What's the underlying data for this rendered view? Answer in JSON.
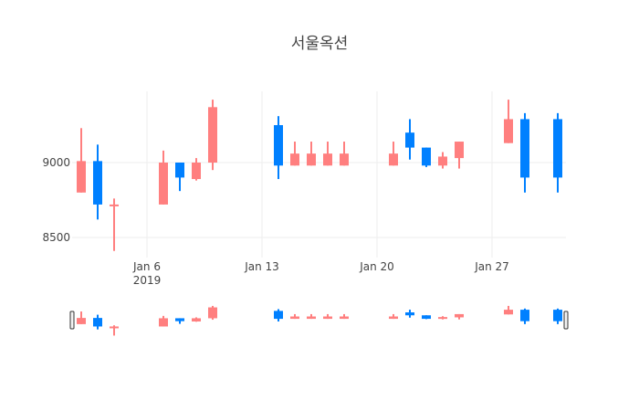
{
  "title": "서울옥션",
  "colors": {
    "increasing": "#FF7F7F",
    "decreasing": "#0080FF",
    "grid": "#eeeeee",
    "axis_text": "#444444"
  },
  "chart_data": {
    "type": "candlestick",
    "title": "서울옥션",
    "xlabel": "",
    "ylabel": "",
    "x_tick_labels": [
      "Jan 6\n2019",
      "Jan 13",
      "Jan 20",
      "Jan 27"
    ],
    "y_tick_labels": [
      "8500",
      "9000"
    ],
    "ylim": [
      8330,
      9480
    ],
    "grid": true,
    "legend": false,
    "rangeslider": true,
    "series": [
      {
        "name": "서울옥션",
        "dates": [
          "2019-01-02",
          "2019-01-03",
          "2019-01-04",
          "2019-01-07",
          "2019-01-08",
          "2019-01-09",
          "2019-01-10",
          "2019-01-14",
          "2019-01-15",
          "2019-01-16",
          "2019-01-17",
          "2019-01-18",
          "2019-01-21",
          "2019-01-22",
          "2019-01-23",
          "2019-01-24",
          "2019-01-25",
          "2019-01-28",
          "2019-01-29",
          "2019-01-31"
        ],
        "open": [
          8800,
          9010,
          8720,
          8720,
          9000,
          8890,
          9000,
          9250,
          8980,
          8980,
          8980,
          8980,
          8980,
          9200,
          9100,
          8980,
          9030,
          9130,
          9290,
          9290
        ],
        "high": [
          9230,
          9120,
          8760,
          9080,
          9000,
          9030,
          9420,
          9310,
          9140,
          9140,
          9140,
          9140,
          9140,
          9290,
          9100,
          9070,
          9140,
          9420,
          9330,
          9330
        ],
        "low": [
          8800,
          8620,
          8410,
          8720,
          8810,
          8880,
          8950,
          8890,
          8980,
          8980,
          8980,
          8980,
          8980,
          9020,
          8970,
          8960,
          8960,
          9130,
          8800,
          8800
        ],
        "close": [
          9010,
          8720,
          8720,
          9000,
          8900,
          9000,
          9370,
          8980,
          9060,
          9060,
          9060,
          9060,
          9060,
          9100,
          8980,
          9040,
          9140,
          9290,
          8900,
          8900
        ]
      }
    ]
  }
}
